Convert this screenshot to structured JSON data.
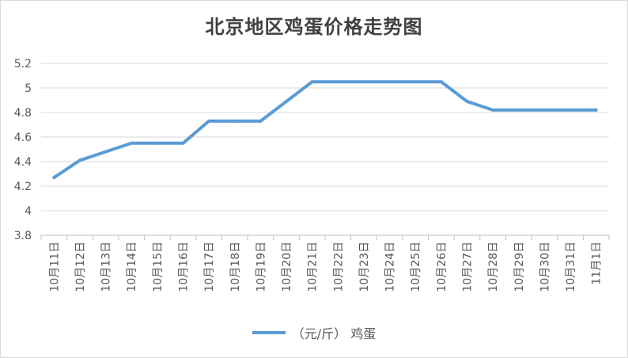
{
  "chart_data": {
    "type": "line",
    "title": "北京地区鸡蛋价格走势图",
    "xlabel": "",
    "ylabel": "",
    "categories": [
      "10月11日",
      "10月12日",
      "10月13日",
      "10月14日",
      "10月15日",
      "10月16日",
      "10月17日",
      "10月18日",
      "10月19日",
      "10月20日",
      "10月21日",
      "10月22日",
      "10月23日",
      "10月24日",
      "10月25日",
      "10月26日",
      "10月27日",
      "10月28日",
      "10月29日",
      "10月30日",
      "10月31日",
      "11月1日"
    ],
    "series": [
      {
        "name": "（元/斤） 鸡蛋",
        "color": "#5b9bd5",
        "values": [
          4.27,
          4.41,
          4.48,
          4.55,
          4.55,
          4.55,
          4.73,
          4.73,
          4.73,
          4.89,
          5.05,
          5.05,
          5.05,
          5.05,
          5.05,
          5.05,
          4.89,
          4.82,
          4.82,
          4.82,
          4.82,
          4.82
        ]
      }
    ],
    "ylim": [
      3.8,
      5.2
    ],
    "yticks": [
      3.8,
      4,
      4.2,
      4.4,
      4.6,
      4.8,
      5,
      5.2
    ],
    "ytick_labels": [
      "3.8",
      "4",
      "4.2",
      "4.4",
      "4.6",
      "4.8",
      "5",
      "5.2"
    ],
    "grid": true,
    "legend_position": "bottom"
  }
}
